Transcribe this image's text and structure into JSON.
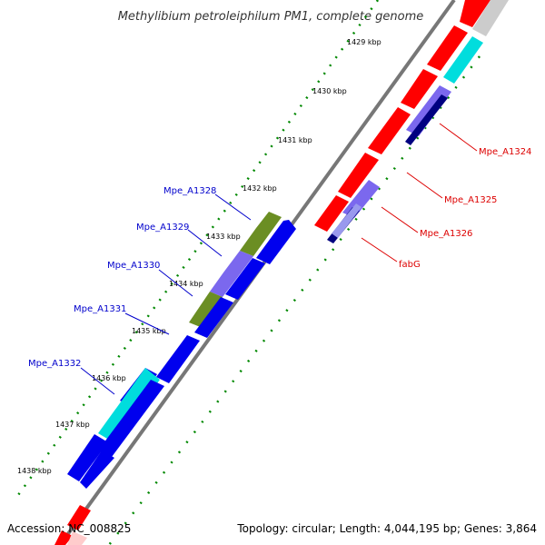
{
  "title": "Methylibium petroleiphilum PM1, complete genome",
  "footer": {
    "accession": "Accession: NC_008825",
    "summary": "Topology: circular; Length: 4,044,195 bp; Genes: 3,864"
  },
  "scale_ticks": [
    {
      "label": "1429 kbp"
    },
    {
      "label": "1430 kbp"
    },
    {
      "label": "1431 kbp"
    },
    {
      "label": "1432 kbp"
    },
    {
      "label": "1433 kbp"
    },
    {
      "label": "1434 kbp"
    },
    {
      "label": "1435 kbp"
    },
    {
      "label": "1436 kbp"
    },
    {
      "label": "1437 kbp"
    },
    {
      "label": "1438 kbp"
    }
  ],
  "genes_left": [
    {
      "label": "Mpe_A1328",
      "color": "#0000cc"
    },
    {
      "label": "Mpe_A1329",
      "color": "#0000cc"
    },
    {
      "label": "Mpe_A1330",
      "color": "#0000cc"
    },
    {
      "label": "Mpe_A1331",
      "color": "#0000cc"
    },
    {
      "label": "Mpe_A1332",
      "color": "#0000cc"
    }
  ],
  "genes_right": [
    {
      "label": "Mpe_A1324",
      "color": "#dd0000"
    },
    {
      "label": "Mpe_A1325",
      "color": "#dd0000"
    },
    {
      "label": "Mpe_A1326",
      "color": "#dd0000"
    },
    {
      "label": "fabG",
      "color": "#dd0000"
    }
  ],
  "colors": {
    "forward_cds": "#0000ee",
    "reverse_cds": "#ff0000",
    "olive_feature": "#6b8e23",
    "purple_feature": "#7b68ee",
    "cyan_feature": "#00dddd",
    "navy_feature": "#000080",
    "grey_feature": "#cccccc",
    "backbone": "#777777",
    "gc_dots": "#008800"
  }
}
